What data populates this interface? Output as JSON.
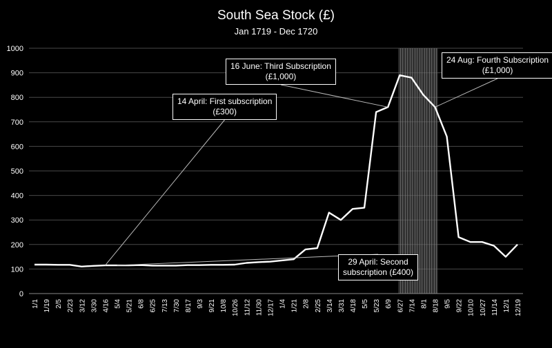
{
  "chart_data": {
    "type": "line",
    "title": "South Sea Stock (£)",
    "subtitle": "Jan 1719 - Dec 1720",
    "xlabel": "",
    "ylabel": "",
    "ylim": [
      0,
      1000
    ],
    "yticks": [
      0,
      100,
      200,
      300,
      400,
      500,
      600,
      700,
      800,
      900,
      1000
    ],
    "grid": true,
    "x_tick_labels": [
      "1/1",
      "1/19",
      "2/5",
      "2/23",
      "3/12",
      "3/30",
      "4/16",
      "5/4",
      "5/21",
      "6/8",
      "6/25",
      "7/13",
      "7/30",
      "8/17",
      "9/3",
      "9/21",
      "10/8",
      "10/26",
      "11/12",
      "11/30",
      "12/17",
      "1/4",
      "1/21",
      "2/8",
      "2/25",
      "3/14",
      "3/31",
      "4/18",
      "5/5",
      "5/23",
      "6/9",
      "6/27",
      "7/14",
      "8/1",
      "8/18",
      "9/5",
      "9/22",
      "10/10",
      "10/27",
      "11/14",
      "12/1",
      "12/19"
    ],
    "shaded_region": {
      "from_label": "6/27",
      "to_label": "8/18"
    },
    "series": [
      {
        "x": [
          "1/1",
          "1/19",
          "2/5",
          "2/23",
          "3/12",
          "3/30",
          "4/16",
          "5/4",
          "5/21",
          "6/8",
          "6/25",
          "7/13",
          "7/30",
          "8/17",
          "9/3",
          "9/21",
          "10/8",
          "10/26",
          "11/12",
          "11/30",
          "12/17",
          "1/4",
          "1/21",
          "2/8",
          "2/25",
          "3/14",
          "3/31",
          "4/18",
          "5/5",
          "5/23",
          "6/9",
          "6/27",
          "7/14",
          "8/1",
          "8/18",
          "9/5",
          "9/22",
          "10/10",
          "10/27",
          "11/14",
          "12/1",
          "12/19"
        ],
        "values": [
          118,
          118,
          117,
          117,
          110,
          113,
          115,
          115,
          115,
          116,
          114,
          114,
          114,
          116,
          116,
          117,
          117,
          118,
          125,
          128,
          130,
          135,
          140,
          180,
          185,
          330,
          300,
          345,
          350,
          740,
          760,
          890,
          880,
          810,
          760,
          640,
          230,
          210,
          210,
          195,
          150,
          200
        ]
      }
    ],
    "annotations": [
      {
        "lines": [
          "14 April: First subscription",
          "(£300)"
        ],
        "target_label": "4/16"
      },
      {
        "lines": [
          "16 June: Third Subscription",
          "(£1,000)"
        ],
        "target_label": "6/9"
      },
      {
        "lines": [
          "24 Aug: Fourth Subscription",
          "(£1,000)"
        ],
        "target_label": "8/18"
      },
      {
        "lines": [
          "29 April: Second",
          "subscription (£400)"
        ],
        "target_label": "5/4"
      }
    ]
  }
}
